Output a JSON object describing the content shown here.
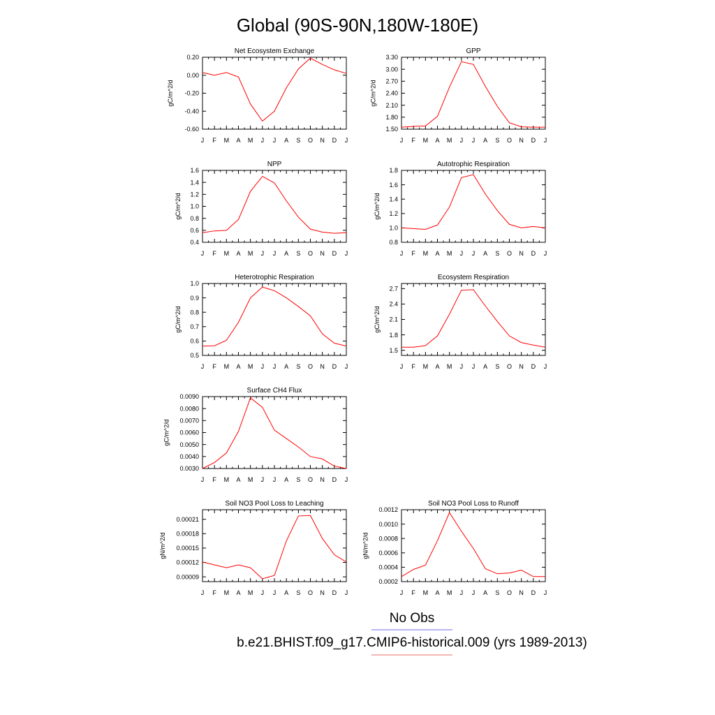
{
  "title": "Global (90S-90N,180W-180E)",
  "month_labels": [
    "J",
    "F",
    "M",
    "A",
    "M",
    "J",
    "J",
    "A",
    "S",
    "O",
    "N",
    "D",
    "J"
  ],
  "legend": {
    "obs_label": "No Obs",
    "obs_color": "#8a8af0",
    "model_label": "b.e21.BHIST.f09_g17.CMIP6-historical.009 (yrs 1989-2013)",
    "model_color": "#f08a8a"
  },
  "line_color": "#ff0000",
  "chart_data": [
    {
      "type": "line",
      "title": "Net Ecosystem Exchange",
      "ylabel": "gC/m^2/d",
      "ylim": [
        -0.6,
        0.2
      ],
      "yticks": [
        "0.20",
        "0.00",
        "-0.20",
        "-0.40",
        "-0.60"
      ],
      "ytick_values": [
        0.2,
        0.0,
        -0.2,
        -0.4,
        -0.6
      ],
      "values": [
        0.03,
        0.0,
        0.03,
        -0.02,
        -0.32,
        -0.51,
        -0.4,
        -0.14,
        0.07,
        0.19,
        0.12,
        0.06,
        0.02
      ]
    },
    {
      "type": "line",
      "title": "GPP",
      "ylabel": "gC/m^2/d",
      "ylim": [
        1.5,
        3.3
      ],
      "yticks": [
        "3.30",
        "3.00",
        "2.70",
        "2.40",
        "2.10",
        "1.80",
        "1.50"
      ],
      "ytick_values": [
        3.3,
        3.0,
        2.7,
        2.4,
        2.1,
        1.8,
        1.5
      ],
      "values": [
        1.55,
        1.57,
        1.58,
        1.82,
        2.55,
        3.19,
        3.12,
        2.57,
        2.07,
        1.66,
        1.56,
        1.55,
        1.55
      ]
    },
    {
      "type": "line",
      "title": "NPP",
      "ylabel": "gC/m^2/d",
      "ylim": [
        0.4,
        1.6
      ],
      "yticks": [
        "1.6",
        "1.4",
        "1.2",
        "1.0",
        "0.8",
        "0.6",
        "0.4"
      ],
      "ytick_values": [
        1.6,
        1.4,
        1.2,
        1.0,
        0.8,
        0.6,
        0.4
      ],
      "values": [
        0.56,
        0.59,
        0.6,
        0.78,
        1.25,
        1.5,
        1.39,
        1.09,
        0.82,
        0.62,
        0.57,
        0.55,
        0.56
      ]
    },
    {
      "type": "line",
      "title": "Autotrophic Respiration",
      "ylabel": "gC/m^2/d",
      "ylim": [
        0.8,
        1.8
      ],
      "yticks": [
        "1.8",
        "1.6",
        "1.4",
        "1.2",
        "1.0",
        "0.8"
      ],
      "ytick_values": [
        1.8,
        1.6,
        1.4,
        1.2,
        1.0,
        0.8
      ],
      "values": [
        1.0,
        0.99,
        0.98,
        1.04,
        1.29,
        1.7,
        1.74,
        1.47,
        1.24,
        1.05,
        1.0,
        1.02,
        1.0
      ]
    },
    {
      "type": "line",
      "title": "Heterotrophic Respiration",
      "ylabel": "gC/m^2/d",
      "ylim": [
        0.5,
        1.0
      ],
      "yticks": [
        "1.0",
        "0.9",
        "0.8",
        "0.7",
        "0.6",
        "0.5"
      ],
      "ytick_values": [
        1.0,
        0.9,
        0.8,
        0.7,
        0.6,
        0.5
      ],
      "values": [
        0.565,
        0.567,
        0.605,
        0.73,
        0.9,
        0.975,
        0.95,
        0.9,
        0.84,
        0.775,
        0.65,
        0.585,
        0.565
      ]
    },
    {
      "type": "line",
      "title": "Ecosystem Respiration",
      "ylabel": "gC/m^2/d",
      "ylim": [
        1.4,
        2.8
      ],
      "yticks": [
        "2.7",
        "2.4",
        "2.1",
        "1.8",
        "1.5"
      ],
      "ytick_values": [
        2.7,
        2.4,
        2.1,
        1.8,
        1.5
      ],
      "values": [
        1.56,
        1.56,
        1.59,
        1.78,
        2.2,
        2.67,
        2.68,
        2.36,
        2.06,
        1.78,
        1.65,
        1.6,
        1.56
      ]
    },
    {
      "type": "line",
      "title": "Surface CH4 Flux",
      "ylabel": "gC/m^2/d",
      "ylim": [
        0.003,
        0.009
      ],
      "yticks": [
        "0.0090",
        "0.0080",
        "0.0070",
        "0.0060",
        "0.0050",
        "0.0040",
        "0.0030"
      ],
      "ytick_values": [
        0.009,
        0.008,
        0.007,
        0.006,
        0.005,
        0.004,
        0.003
      ],
      "values": [
        0.003,
        0.0035,
        0.0043,
        0.0061,
        0.0089,
        0.0081,
        0.0062,
        0.0055,
        0.0048,
        0.004,
        0.0038,
        0.0032,
        0.003
      ]
    },
    {
      "type": "line",
      "title": "Soil NO3 Pool Loss to Leaching",
      "ylabel": "gN/m^2/d",
      "ylim": [
        8e-05,
        0.00023
      ],
      "yticks": [
        "0.00021",
        "0.00018",
        "0.00015",
        "0.00012",
        "0.00009"
      ],
      "ytick_values": [
        0.00021,
        0.00018,
        0.00015,
        0.00012,
        9e-05
      ],
      "values": [
        0.000121,
        0.000115,
        0.000109,
        0.000115,
        0.000109,
        8.6e-05,
        9.3e-05,
        0.000165,
        0.000217,
        0.000218,
        0.00017,
        0.000136,
        0.000121
      ]
    },
    {
      "type": "line",
      "title": "Soil NO3 Pool Loss to Runoff",
      "ylabel": "gN/m^2/d",
      "ylim": [
        0.0002,
        0.0012
      ],
      "yticks": [
        "0.0012",
        "0.0010",
        "0.0008",
        "0.0006",
        "0.0004",
        "0.0002"
      ],
      "ytick_values": [
        0.0012,
        0.001,
        0.0008,
        0.0006,
        0.0004,
        0.0002
      ],
      "values": [
        0.00027,
        0.00037,
        0.00043,
        0.00077,
        0.00116,
        0.0009,
        0.00066,
        0.00038,
        0.00031,
        0.00032,
        0.00036,
        0.00027,
        0.00027
      ]
    }
  ]
}
